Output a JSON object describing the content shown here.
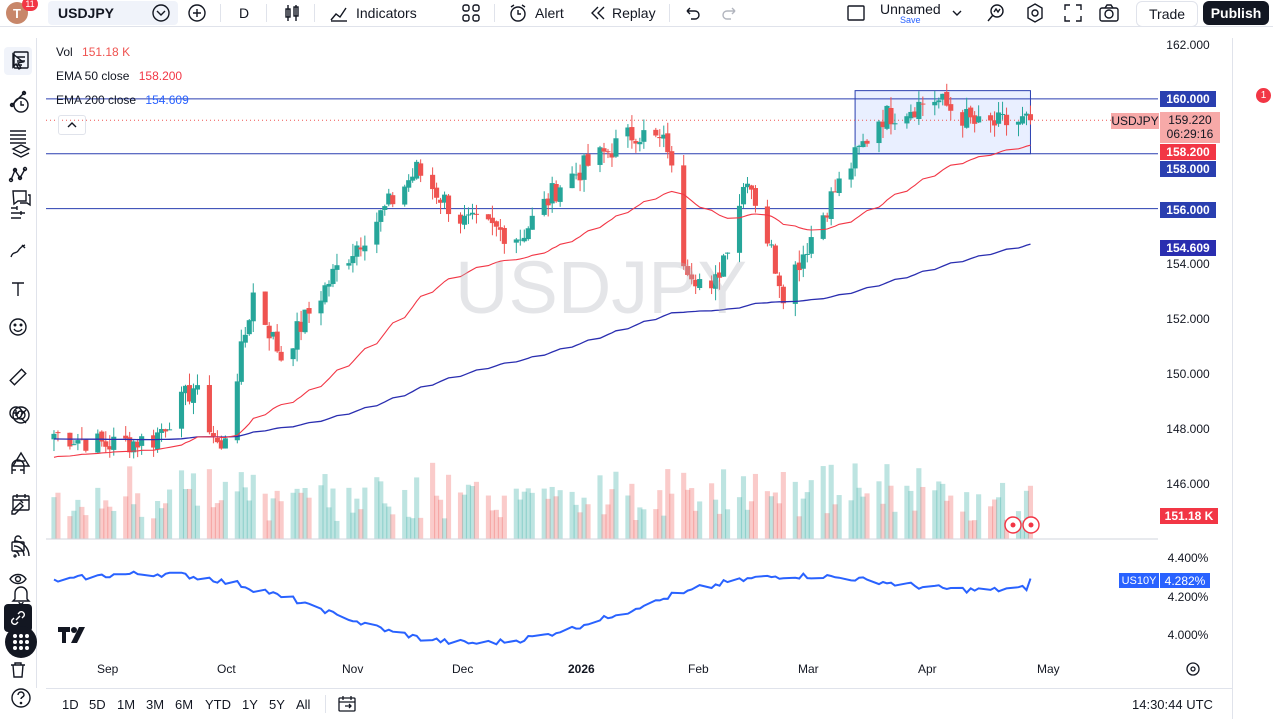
{
  "topbar": {
    "avatar_letter": "T",
    "avatar_badge": "11",
    "symbol": "USDJPY",
    "interval": "D",
    "indicators_label": "Indicators",
    "alert_label": "Alert",
    "replay_label": "Replay",
    "layout_name": "Unnamed",
    "save_label": "Save",
    "trade_label": "Trade",
    "publish_label": "Publish"
  },
  "legend": {
    "vol_label": "Vol",
    "vol_value": "151.18 K",
    "ema50_label": "EMA 50 close",
    "ema50_value": "158.200",
    "ema200_label": "EMA 200 close",
    "ema200_value": "154.609"
  },
  "colors": {
    "up": "#26a69a",
    "down": "#ef5350",
    "ema50": "#f23645",
    "ema200": "#2962ff",
    "us10y": "#2962ff",
    "hline": "#2a3fb0"
  },
  "watermark": "USDJPY",
  "price_axis": {
    "ticks": [
      "162.000",
      "160.000",
      "154.000",
      "152.000",
      "150.000",
      "148.000",
      "146.000"
    ],
    "us10y_ticks": [
      "4.400%",
      "4.200%",
      "4.000%"
    ],
    "tags": {
      "level_160": "160.000",
      "symbol_tag": "USDJPY",
      "last_price": "159.220",
      "countdown": "06:29:16",
      "ema50": "158.200",
      "level_158": "158.000",
      "level_156": "156.000",
      "ema200": "154.609",
      "volume": "151.18 K",
      "us10y_name": "US10Y",
      "us10y_value": "4.282%"
    }
  },
  "time_axis": [
    "Sep",
    "Oct",
    "Nov",
    "Dec",
    "2026",
    "Feb",
    "Mar",
    "Apr",
    "May"
  ],
  "bottombar": {
    "ranges": [
      "1D",
      "5D",
      "1M",
      "3M",
      "6M",
      "YTD",
      "1Y",
      "5Y",
      "All"
    ],
    "clock": "14:30:44 UTC"
  },
  "righttool": {
    "alert_badge": "1"
  },
  "chart_data": {
    "type": "candlestick",
    "symbol": "USDJPY",
    "interval": "D",
    "ylim": [
      145.0,
      162.5
    ],
    "horizontal_levels": [
      160.0,
      158.0,
      156.0
    ],
    "range_box": {
      "from": "2026-03-10",
      "to": "2026-04-23",
      "low": 158.0,
      "high": 160.3
    },
    "close_path": [
      {
        "date": "2025-08-21",
        "price": 147.8
      },
      {
        "date": "2025-09-03",
        "price": 147.4
      },
      {
        "date": "2025-09-15",
        "price": 147.6
      },
      {
        "date": "2025-09-25",
        "price": 149.5
      },
      {
        "date": "2025-10-02",
        "price": 147.1
      },
      {
        "date": "2025-10-10",
        "price": 152.9
      },
      {
        "date": "2025-10-17",
        "price": 150.6
      },
      {
        "date": "2025-10-31",
        "price": 153.8
      },
      {
        "date": "2025-11-20",
        "price": 157.4
      },
      {
        "date": "2025-12-02",
        "price": 155.5
      },
      {
        "date": "2025-12-16",
        "price": 155.0
      },
      {
        "date": "2025-12-26",
        "price": 156.9
      },
      {
        "date": "2026-01-14",
        "price": 158.8
      },
      {
        "date": "2026-01-22",
        "price": 158.3
      },
      {
        "date": "2026-01-26",
        "price": 154.2
      },
      {
        "date": "2026-02-02",
        "price": 152.8
      },
      {
        "date": "2026-02-11",
        "price": 157.3
      },
      {
        "date": "2026-02-20",
        "price": 153.0
      },
      {
        "date": "2026-03-04",
        "price": 156.4
      },
      {
        "date": "2026-03-16",
        "price": 159.3
      },
      {
        "date": "2026-03-30",
        "price": 160.0
      },
      {
        "date": "2026-04-10",
        "price": 159.0
      },
      {
        "date": "2026-04-23",
        "price": 159.22
      }
    ],
    "ema50": {
      "name": "EMA 50 close",
      "last": 158.2
    },
    "ema200": {
      "name": "EMA 200 close",
      "last": 154.609
    },
    "volume_last": "151.18 K",
    "us10y": {
      "name": "US10Y",
      "last": 4.282,
      "ylim": [
        3.95,
        4.45
      ]
    }
  }
}
